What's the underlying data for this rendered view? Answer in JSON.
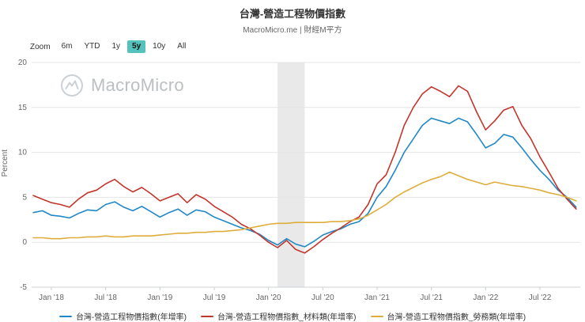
{
  "toolbar": {
    "zoom_label": "Zoom",
    "ranges": [
      "6m",
      "YTD",
      "1y",
      "5y",
      "10y",
      "All"
    ],
    "active_range": "5y",
    "active_color": "#56c2bc"
  },
  "watermark": "MacroMicro",
  "chart_data": {
    "type": "line",
    "title": "台灣-營造工程物價指數",
    "subtitle": "MacroMicro.me | 財經M平方",
    "xlabel": "",
    "ylabel": "Percent",
    "ylim": [
      -5,
      20
    ],
    "y_ticks": [
      -5,
      0,
      5,
      10,
      15,
      20
    ],
    "grid": true,
    "legend_position": "bottom",
    "x": [
      "2017-11",
      "2017-12",
      "2018-01",
      "2018-02",
      "2018-03",
      "2018-04",
      "2018-05",
      "2018-06",
      "2018-07",
      "2018-08",
      "2018-09",
      "2018-10",
      "2018-11",
      "2018-12",
      "2019-01",
      "2019-02",
      "2019-03",
      "2019-04",
      "2019-05",
      "2019-06",
      "2019-07",
      "2019-08",
      "2019-09",
      "2019-10",
      "2019-11",
      "2019-12",
      "2020-01",
      "2020-02",
      "2020-03",
      "2020-04",
      "2020-05",
      "2020-06",
      "2020-07",
      "2020-08",
      "2020-09",
      "2020-10",
      "2020-11",
      "2020-12",
      "2021-01",
      "2021-02",
      "2021-03",
      "2021-04",
      "2021-05",
      "2021-06",
      "2021-07",
      "2021-08",
      "2021-09",
      "2021-10",
      "2021-11",
      "2021-12",
      "2022-01",
      "2022-02",
      "2022-03",
      "2022-04",
      "2022-05",
      "2022-06",
      "2022-07",
      "2022-08",
      "2022-09",
      "2022-10",
      "2022-11"
    ],
    "x_ticks": [
      {
        "i": 2,
        "label": "Jan '18"
      },
      {
        "i": 8,
        "label": "Jul '18"
      },
      {
        "i": 14,
        "label": "Jan '19"
      },
      {
        "i": 20,
        "label": "Jul '19"
      },
      {
        "i": 26,
        "label": "Jan '20"
      },
      {
        "i": 32,
        "label": "Jul '20"
      },
      {
        "i": 38,
        "label": "Jan '21"
      },
      {
        "i": 44,
        "label": "Jul '21"
      },
      {
        "i": 50,
        "label": "Jan '22"
      },
      {
        "i": 56,
        "label": "Jul '22"
      }
    ],
    "recession_band": {
      "from": "2020-02",
      "to": "2020-04",
      "color": "#e9e9e9"
    },
    "series": [
      {
        "id": "overall",
        "name": "台灣-營造工程物價指數(年增率)",
        "color": "#2088c6",
        "values": [
          3.3,
          3.5,
          3.0,
          2.9,
          2.7,
          3.2,
          3.6,
          3.5,
          4.2,
          4.5,
          3.9,
          3.5,
          4.0,
          3.4,
          2.8,
          3.3,
          3.7,
          3.0,
          3.6,
          3.4,
          2.8,
          2.4,
          2.0,
          1.6,
          1.3,
          0.9,
          0.2,
          -0.3,
          0.4,
          -0.2,
          -0.5,
          0.1,
          0.8,
          1.2,
          1.5,
          2.0,
          2.3,
          3.2,
          5.0,
          6.2,
          8.0,
          10.0,
          11.5,
          13.0,
          13.8,
          13.5,
          13.2,
          13.8,
          13.4,
          12.0,
          10.5,
          11.0,
          12.0,
          11.7,
          10.5,
          9.2,
          8.0,
          7.0,
          5.8,
          5.0,
          3.9
        ]
      },
      {
        "id": "materials",
        "name": "台灣-營造工程物價指數_材料類(年增率)",
        "color": "#c2362b",
        "values": [
          5.2,
          4.8,
          4.4,
          4.2,
          3.9,
          4.8,
          5.5,
          5.8,
          6.5,
          7.0,
          6.2,
          5.6,
          6.1,
          5.4,
          4.6,
          5.0,
          5.4,
          4.4,
          5.3,
          4.8,
          4.0,
          3.4,
          2.8,
          2.0,
          1.5,
          0.8,
          0.0,
          -0.6,
          0.2,
          -0.8,
          -1.2,
          -0.5,
          0.3,
          1.0,
          1.6,
          2.3,
          2.8,
          4.2,
          6.5,
          7.5,
          10.0,
          13.0,
          15.0,
          16.5,
          17.3,
          16.8,
          16.2,
          17.4,
          16.8,
          14.5,
          12.5,
          13.5,
          14.7,
          15.1,
          13.0,
          11.5,
          9.5,
          7.8,
          6.0,
          4.8,
          3.7
        ]
      },
      {
        "id": "labor",
        "name": "台灣-營造工程物價指數_勞務類(年增率)",
        "color": "#dfad3c",
        "values": [
          0.5,
          0.5,
          0.4,
          0.4,
          0.5,
          0.5,
          0.6,
          0.6,
          0.7,
          0.6,
          0.6,
          0.7,
          0.7,
          0.7,
          0.8,
          0.9,
          1.0,
          1.0,
          1.1,
          1.1,
          1.2,
          1.2,
          1.3,
          1.4,
          1.6,
          1.8,
          2.0,
          2.1,
          2.1,
          2.2,
          2.2,
          2.2,
          2.2,
          2.3,
          2.3,
          2.4,
          2.6,
          3.0,
          3.6,
          4.2,
          5.0,
          5.6,
          6.1,
          6.6,
          7.0,
          7.3,
          7.8,
          7.4,
          7.0,
          6.7,
          6.4,
          6.7,
          6.5,
          6.3,
          6.2,
          6.0,
          5.8,
          5.5,
          5.3,
          5.0,
          4.6
        ]
      }
    ]
  }
}
